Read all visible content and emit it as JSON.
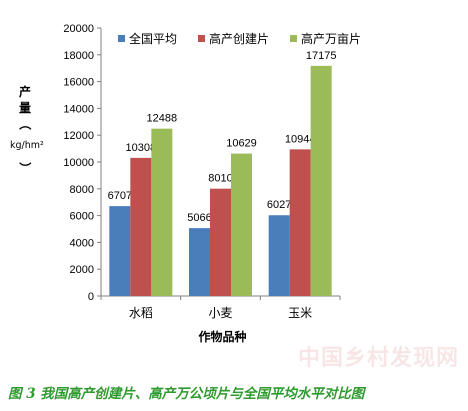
{
  "chart_data": {
    "type": "bar",
    "categories": [
      "水稻",
      "小麦",
      "玉米"
    ],
    "series": [
      {
        "name": "全国平均",
        "values": [
          6707,
          5066,
          6027
        ],
        "color": "#4a7ebb"
      },
      {
        "name": "高产创建片",
        "values": [
          10308,
          8010,
          10944
        ],
        "color": "#c0504d"
      },
      {
        "name": "高产万亩片",
        "values": [
          12488,
          10629,
          17175
        ],
        "color": "#9bbb59"
      }
    ],
    "value_labels": [
      [
        "6707",
        "5066",
        "6027"
      ],
      [
        "10308",
        "8010",
        "10944"
      ],
      [
        "12488",
        "10629",
        "17175"
      ]
    ],
    "ylim": [
      0,
      20000
    ],
    "yticks": [
      "0",
      "2000",
      "4000",
      "6000",
      "8000",
      "10000",
      "12000",
      "14000",
      "16000",
      "18000",
      "20000"
    ],
    "ylabel": "产量（kg/hm²）",
    "xlabel": "作物品种",
    "legend_position": "top-left",
    "grid": false
  },
  "ylabel_parts": {
    "chars": [
      "产",
      "量",
      "（"
    ],
    "unit": "kg/hm²",
    "close": "）"
  },
  "caption": "图 3 我国高产创建片、高产万公顷片与全国平均水平对比图",
  "watermark": "中国乡村发现网"
}
